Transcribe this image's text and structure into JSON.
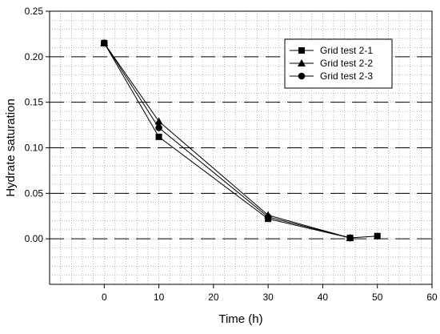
{
  "chart_data": {
    "type": "line",
    "title": "",
    "xlabel": "Time (h)",
    "ylabel": "Hydrate saturation",
    "xlim": [
      -10,
      60
    ],
    "ylim": [
      -0.05,
      0.25
    ],
    "xticks": [
      0,
      10,
      20,
      30,
      40,
      50,
      60
    ],
    "yticks": [
      0.0,
      0.05,
      0.1,
      0.15,
      0.2,
      0.25
    ],
    "ytick_labels": [
      "0.00",
      "0.05",
      "0.10",
      "0.15",
      "0.20",
      "0.25"
    ],
    "grid": {
      "major_horizontal": "dashed",
      "minor": "dotted"
    },
    "legend_position": "top-right",
    "colors": {
      "line": "#000000",
      "grid_major": "#000000",
      "grid_minor": "#888888"
    },
    "series": [
      {
        "name": "Grid test 2-1",
        "marker": "square",
        "x": [
          0,
          10,
          30,
          45,
          50
        ],
        "y": [
          0.215,
          0.112,
          0.022,
          0.001,
          0.003
        ]
      },
      {
        "name": "Grid test 2-2",
        "marker": "triangle",
        "x": [
          0,
          10,
          30,
          45
        ],
        "y": [
          0.215,
          0.129,
          0.026,
          0.001
        ]
      },
      {
        "name": "Grid test 2-3",
        "marker": "circle",
        "x": [
          0,
          10,
          30,
          45
        ],
        "y": [
          0.215,
          0.122,
          0.024,
          0.001
        ]
      }
    ]
  }
}
